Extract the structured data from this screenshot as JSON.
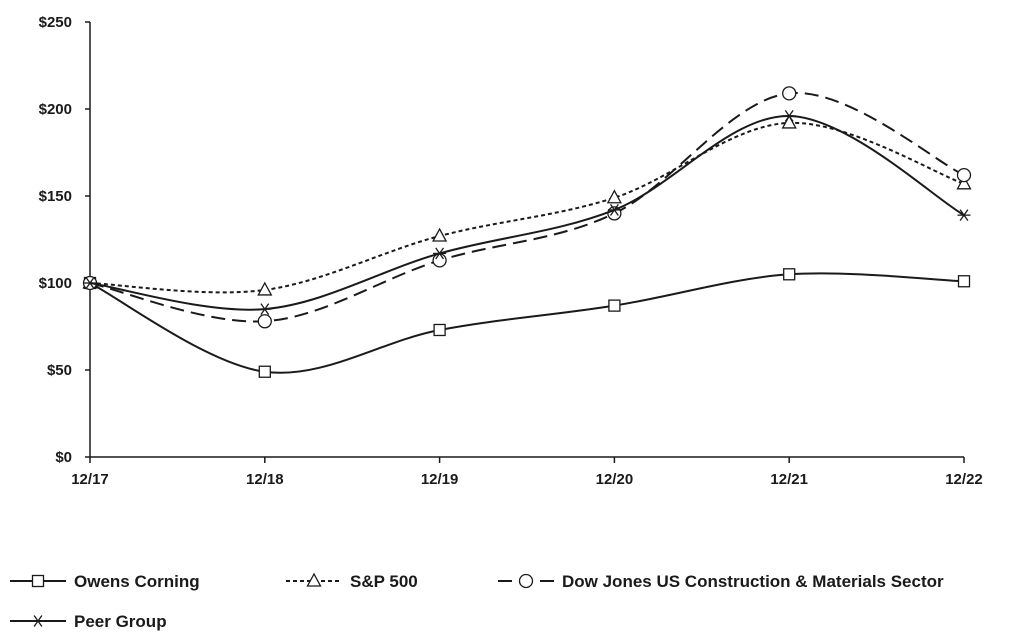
{
  "chart_data": {
    "type": "line",
    "title": "",
    "xlabel": "",
    "ylabel": "",
    "categories": [
      "12/17",
      "12/18",
      "12/19",
      "12/20",
      "12/21",
      "12/22"
    ],
    "y_ticks": [
      "$0",
      "$50",
      "$100",
      "$150",
      "$200",
      "$250"
    ],
    "ylim": [
      0,
      250
    ],
    "grid": false,
    "legend_position": "bottom",
    "series": [
      {
        "name": "Owens Corning",
        "values": [
          100,
          49,
          73,
          87,
          105,
          101
        ],
        "line": "solid",
        "marker": "square",
        "color": "#1a1a1a"
      },
      {
        "name": "S&P 500",
        "values": [
          100,
          96,
          127,
          149,
          192,
          157
        ],
        "line": "dotted",
        "marker": "triangle",
        "color": "#1a1a1a"
      },
      {
        "name": "Dow Jones US Construction & Materials Sector",
        "values": [
          100,
          78,
          113,
          140,
          209,
          162
        ],
        "line": "dashed",
        "marker": "circle",
        "color": "#1a1a1a"
      },
      {
        "name": "Peer Group",
        "values": [
          100,
          85,
          117,
          142,
          196,
          139
        ],
        "line": "solid",
        "marker": "star",
        "color": "#1a1a1a"
      }
    ]
  }
}
